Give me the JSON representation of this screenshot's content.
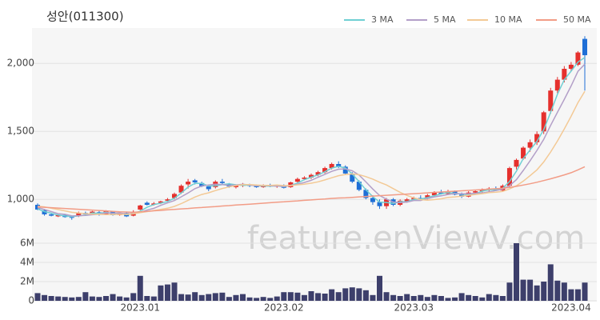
{
  "chart_data": [
    {
      "type": "candlestick",
      "title": "성안(011300)",
      "watermark": "feature.enViewV.com",
      "categories": [
        null,
        null,
        null,
        null,
        null,
        null,
        null,
        null,
        null,
        null,
        null,
        null,
        null,
        null,
        null,
        "2023.01",
        null,
        null,
        null,
        null,
        null,
        null,
        null,
        null,
        null,
        null,
        null,
        null,
        null,
        null,
        null,
        null,
        null,
        null,
        null,
        null,
        "2023.02",
        null,
        null,
        null,
        null,
        null,
        null,
        null,
        null,
        null,
        null,
        null,
        null,
        null,
        null,
        null,
        null,
        null,
        null,
        "2023.03",
        null,
        null,
        null,
        null,
        null,
        null,
        null,
        null,
        null,
        null,
        null,
        null,
        null,
        null,
        null,
        null,
        null,
        null,
        null,
        null,
        null,
        null,
        "2023.04",
        null,
        null
      ],
      "open": [
        960,
        920,
        890,
        875,
        885,
        870,
        880,
        900,
        890,
        905,
        890,
        910,
        885,
        900,
        880,
        925,
        975,
        960,
        975,
        990,
        1010,
        1050,
        1110,
        1140,
        1120,
        1095,
        1090,
        1130,
        1110,
        1090,
        1100,
        1105,
        1100,
        1090,
        1105,
        1095,
        1100,
        1090,
        1130,
        1150,
        1160,
        1180,
        1200,
        1230,
        1260,
        1240,
        1190,
        1130,
        1070,
        1010,
        980,
        950,
        1000,
        960,
        985,
        1000,
        1010,
        1005,
        1030,
        1050,
        1040,
        1060,
        1035,
        1020,
        1050,
        1060,
        1070,
        1080,
        1065,
        1100,
        1240,
        1300,
        1380,
        1420,
        1500,
        1650,
        1800,
        1880,
        1960,
        1990,
        2180
      ],
      "high": [
        970,
        930,
        900,
        890,
        890,
        880,
        910,
        910,
        915,
        915,
        920,
        915,
        905,
        905,
        920,
        960,
        985,
        980,
        990,
        1010,
        1050,
        1110,
        1150,
        1150,
        1130,
        1110,
        1140,
        1150,
        1120,
        1110,
        1120,
        1115,
        1110,
        1110,
        1115,
        1110,
        1110,
        1130,
        1160,
        1170,
        1190,
        1210,
        1240,
        1270,
        1280,
        1250,
        1200,
        1140,
        1080,
        1030,
        1000,
        1010,
        1010,
        1000,
        1010,
        1020,
        1030,
        1040,
        1060,
        1070,
        1070,
        1065,
        1050,
        1060,
        1070,
        1080,
        1090,
        1095,
        1110,
        1240,
        1300,
        1390,
        1440,
        1500,
        1650,
        1820,
        1900,
        1980,
        2010,
        2090,
        2200
      ],
      "low": [
        920,
        880,
        875,
        870,
        865,
        850,
        870,
        885,
        885,
        880,
        885,
        880,
        880,
        870,
        875,
        920,
        955,
        955,
        965,
        980,
        1000,
        1040,
        1080,
        1110,
        1090,
        1060,
        1080,
        1110,
        1085,
        1080,
        1090,
        1090,
        1085,
        1085,
        1090,
        1085,
        1080,
        1085,
        1120,
        1140,
        1150,
        1170,
        1190,
        1220,
        1230,
        1180,
        1120,
        1060,
        1000,
        960,
        930,
        930,
        950,
        950,
        975,
        990,
        995,
        1000,
        1020,
        1035,
        1035,
        1030,
        1010,
        1015,
        1040,
        1050,
        1055,
        1060,
        1060,
        1090,
        1220,
        1290,
        1350,
        1400,
        1480,
        1630,
        1780,
        1860,
        1940,
        1980,
        1800
      ],
      "close": [
        925,
        890,
        880,
        885,
        870,
        865,
        900,
        890,
        910,
        890,
        915,
        885,
        900,
        875,
        910,
        955,
        960,
        970,
        985,
        1000,
        1040,
        1100,
        1130,
        1125,
        1095,
        1075,
        1130,
        1120,
        1095,
        1105,
        1110,
        1100,
        1090,
        1105,
        1095,
        1100,
        1085,
        1125,
        1150,
        1160,
        1180,
        1200,
        1230,
        1260,
        1240,
        1190,
        1130,
        1070,
        1010,
        980,
        950,
        1000,
        960,
        990,
        1000,
        1010,
        1000,
        1030,
        1050,
        1040,
        1060,
        1035,
        1020,
        1050,
        1060,
        1070,
        1080,
        1065,
        1100,
        1230,
        1290,
        1380,
        1420,
        1480,
        1640,
        1800,
        1880,
        1960,
        1990,
        2080,
        2060
      ],
      "up_color": "#e5302d",
      "down_color": "#1f6fd6",
      "series": [
        {
          "name": "3 MA",
          "color": "#6fcfd3",
          "values": [
            930,
            910,
            898,
            885,
            878,
            873,
            878,
            885,
            900,
            897,
            905,
            897,
            900,
            887,
            895,
            913,
            942,
            962,
            972,
            985,
            1008,
            1047,
            1090,
            1118,
            1117,
            1098,
            1100,
            1108,
            1115,
            1107,
            1103,
            1105,
            1100,
            1098,
            1097,
            1100,
            1093,
            1103,
            1120,
            1145,
            1163,
            1180,
            1203,
            1230,
            1243,
            1230,
            1187,
            1130,
            1070,
            1020,
            980,
            977,
            970,
            983,
            983,
            1000,
            1003,
            1013,
            1027,
            1040,
            1050,
            1045,
            1038,
            1035,
            1043,
            1060,
            1070,
            1072,
            1082,
            1132,
            1207,
            1300,
            1363,
            1427,
            1513,
            1640,
            1773,
            1880,
            1943,
            2010,
            2043
          ]
        },
        {
          "name": "5 MA",
          "color": "#b39fc8",
          "values": [
            940,
            925,
            910,
            895,
            890,
            878,
            880,
            882,
            887,
            891,
            901,
            898,
            900,
            893,
            897,
            905,
            921,
            934,
            956,
            974,
            991,
            1019,
            1047,
            1079,
            1098,
            1105,
            1111,
            1109,
            1103,
            1105,
            1112,
            1106,
            1100,
            1102,
            1100,
            1098,
            1095,
            1102,
            1112,
            1124,
            1140,
            1163,
            1184,
            1206,
            1222,
            1224,
            1210,
            1178,
            1128,
            1076,
            1028,
            1002,
            980,
            976,
            980,
            992,
            992,
            1006,
            1018,
            1026,
            1036,
            1043,
            1041,
            1041,
            1045,
            1047,
            1056,
            1065,
            1075,
            1101,
            1145,
            1213,
            1284,
            1360,
            1442,
            1544,
            1640,
            1736,
            1834,
            1942,
            1994
          ]
        },
        {
          "name": "10 MA",
          "color": "#f3c995",
          "values": [
            950,
            945,
            935,
            925,
            915,
            905,
            900,
            895,
            892,
            890,
            889,
            888,
            890,
            890,
            894,
            903,
            910,
            918,
            926,
            935,
            948,
            969,
            993,
            1017,
            1036,
            1048,
            1065,
            1080,
            1091,
            1102,
            1109,
            1109,
            1105,
            1103,
            1103,
            1105,
            1101,
            1101,
            1107,
            1112,
            1119,
            1129,
            1143,
            1159,
            1174,
            1183,
            1187,
            1181,
            1167,
            1149,
            1126,
            1106,
            1079,
            1052,
            1029,
            1011,
            998,
            994,
            998,
            1004,
            1015,
            1018,
            1024,
            1030,
            1036,
            1042,
            1050,
            1053,
            1058,
            1077,
            1100,
            1134,
            1174,
            1217,
            1275,
            1348,
            1429,
            1518,
            1611,
            1712,
            1795
          ]
        },
        {
          "name": "50 MA",
          "color": "#f29c86",
          "values": [
            945,
            942,
            939,
            936,
            933,
            930,
            927,
            924,
            921,
            918,
            915,
            912,
            909,
            907,
            905,
            909,
            912,
            916,
            919,
            923,
            926,
            930,
            933,
            937,
            940,
            944,
            947,
            951,
            954,
            958,
            961,
            965,
            968,
            972,
            975,
            979,
            982,
            986,
            989,
            993,
            996,
            1000,
            1003,
            1007,
            1010,
            1012,
            1015,
            1018,
            1021,
            1024,
            1027,
            1030,
            1033,
            1036,
            1039,
            1042,
            1045,
            1048,
            1051,
            1054,
            1057,
            1060,
            1063,
            1066,
            1069,
            1072,
            1075,
            1078,
            1081,
            1088,
            1096,
            1105,
            1115,
            1126,
            1138,
            1151,
            1165,
            1180,
            1196,
            1217,
            1240
          ]
        }
      ],
      "ylim": [
        760,
        2260
      ],
      "yticks": [
        {
          "value": 1000,
          "label": "1,000"
        },
        {
          "value": 1500,
          "label": "1,500"
        },
        {
          "value": 2000,
          "label": "2,000"
        }
      ],
      "grid": true
    },
    {
      "type": "bar",
      "color": "#3d3f6b",
      "values": [
        800000,
        600000,
        500000,
        450000,
        400000,
        350000,
        400000,
        900000,
        450000,
        400000,
        500000,
        700000,
        450000,
        350000,
        800000,
        2600000,
        500000,
        450000,
        1600000,
        1700000,
        1900000,
        700000,
        650000,
        900000,
        600000,
        700000,
        800000,
        850000,
        400000,
        600000,
        700000,
        350000,
        300000,
        400000,
        300000,
        450000,
        900000,
        900000,
        850000,
        600000,
        1000000,
        800000,
        750000,
        1200000,
        900000,
        1300000,
        1400000,
        1300000,
        1100000,
        600000,
        2600000,
        900000,
        600000,
        500000,
        700000,
        500000,
        600000,
        400000,
        600000,
        500000,
        300000,
        350000,
        800000,
        600000,
        500000,
        350000,
        700000,
        600000,
        500000,
        1900000,
        6000000,
        2200000,
        2200000,
        1600000,
        2000000,
        3800000,
        2100000,
        1900000,
        1200000,
        1200000,
        1900000
      ],
      "ylim": [
        0,
        6500000
      ],
      "yticks": [
        0,
        {
          "value": 2000000,
          "label": "2M"
        },
        {
          "value": 4000000,
          "label": "4M"
        },
        {
          "value": 6000000,
          "label": "6M"
        }
      ]
    }
  ]
}
